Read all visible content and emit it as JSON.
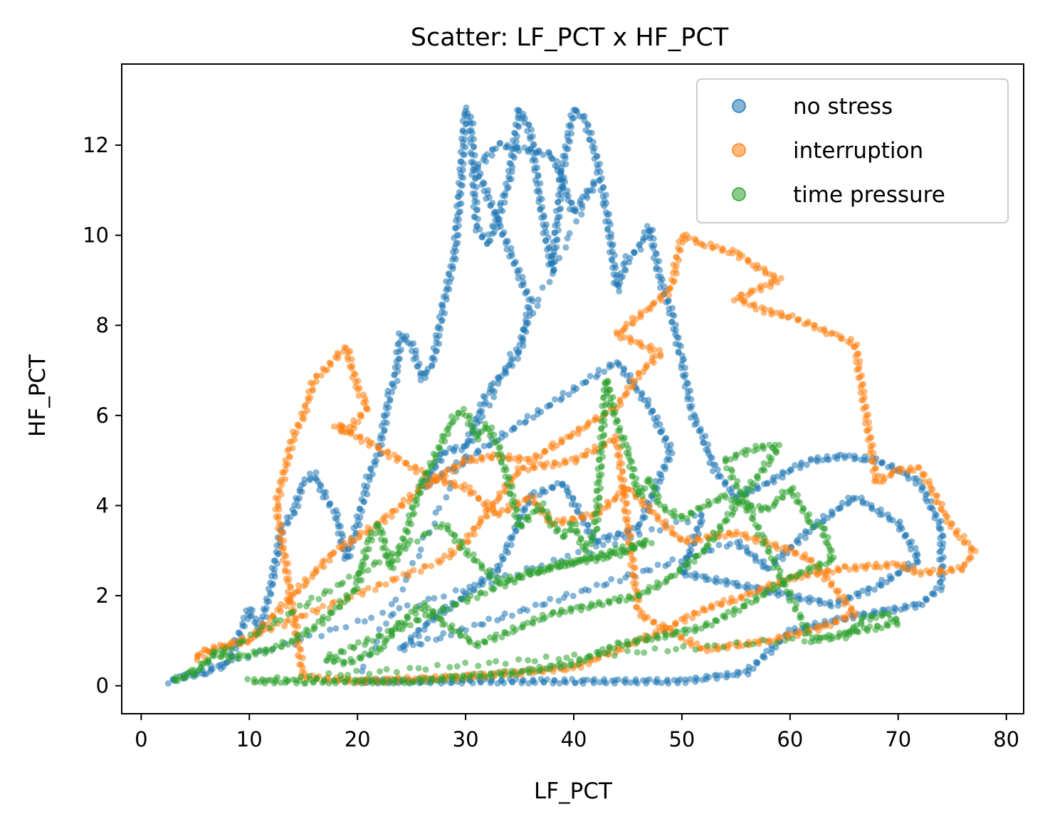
{
  "chart_data": {
    "type": "scatter",
    "title": "Scatter: LF_PCT x HF_PCT",
    "xlabel": "LF_PCT",
    "ylabel": "HF_PCT",
    "xlim": [
      -1.8,
      81.6
    ],
    "ylim": [
      -0.62,
      13.8
    ],
    "xticks": [
      0,
      10,
      20,
      30,
      40,
      50,
      60,
      70,
      80
    ],
    "yticks": [
      0,
      2,
      4,
      6,
      8,
      10,
      12
    ],
    "grid": false,
    "legend_position": "top-right",
    "series": [
      {
        "name": "no stress",
        "color": "#1f77b4",
        "points": [
          [
            2.5,
            0.1
          ],
          [
            4,
            0.2
          ],
          [
            6,
            0.3
          ],
          [
            8,
            0.5
          ],
          [
            10,
            1.7
          ],
          [
            11,
            1.2
          ],
          [
            12,
            2.2
          ],
          [
            13,
            3.5
          ],
          [
            14,
            3.8
          ],
          [
            15,
            4.5
          ],
          [
            16,
            4.7
          ],
          [
            17,
            4.2
          ],
          [
            18,
            3.8
          ],
          [
            19,
            2.8
          ],
          [
            20,
            3.6
          ],
          [
            21,
            4.6
          ],
          [
            22,
            5.2
          ],
          [
            23,
            6.5
          ],
          [
            23.5,
            6.8
          ],
          [
            24,
            7.8
          ],
          [
            25,
            7.6
          ],
          [
            26,
            6.8
          ],
          [
            27,
            7.2
          ],
          [
            28,
            8.5
          ],
          [
            29,
            9.6
          ],
          [
            29.5,
            11
          ],
          [
            30,
            12.8
          ],
          [
            30.5,
            12.5
          ],
          [
            31,
            10.2
          ],
          [
            32,
            9.8
          ],
          [
            33,
            10.4
          ],
          [
            34,
            11.2
          ],
          [
            35,
            12.8
          ],
          [
            36,
            12.3
          ],
          [
            37,
            10.6
          ],
          [
            38,
            9.2
          ],
          [
            39,
            11.5
          ],
          [
            40,
            12.8
          ],
          [
            41,
            12.6
          ],
          [
            42,
            11.8
          ],
          [
            43,
            10.6
          ],
          [
            44,
            8.8
          ],
          [
            45,
            9.5
          ],
          [
            46,
            9.7
          ],
          [
            47,
            10.2
          ],
          [
            48,
            9.0
          ],
          [
            49,
            8.3
          ],
          [
            50,
            7.2
          ],
          [
            51,
            6.0
          ],
          [
            52,
            5.5
          ],
          [
            53,
            4.8
          ],
          [
            55,
            4.2
          ],
          [
            58,
            4.5
          ],
          [
            60,
            4.8
          ],
          [
            62,
            5.0
          ],
          [
            65,
            5.1
          ],
          [
            68,
            5.0
          ],
          [
            70,
            4.8
          ],
          [
            72,
            4.5
          ],
          [
            74,
            3.5
          ],
          [
            74,
            2.2
          ],
          [
            72,
            1.8
          ],
          [
            65,
            1.5
          ],
          [
            60,
            1.2
          ],
          [
            56,
            0.3
          ],
          [
            50,
            0.1
          ],
          [
            40,
            0.1
          ],
          [
            30,
            0.1
          ],
          [
            20,
            0.1
          ],
          [
            42,
            11.2
          ],
          [
            40,
            10.5
          ],
          [
            38,
            11.8
          ],
          [
            33,
            12.0
          ],
          [
            31,
            11.5
          ],
          [
            36,
            8.5
          ],
          [
            35,
            7.4
          ],
          [
            32,
            6.5
          ],
          [
            30,
            5.3
          ],
          [
            28,
            5.2
          ],
          [
            26,
            4.4
          ],
          [
            44,
            7.2
          ],
          [
            47,
            6.2
          ],
          [
            49,
            5.2
          ],
          [
            46,
            3.5
          ],
          [
            42,
            3.2
          ],
          [
            39,
            4.5
          ],
          [
            36,
            4.2
          ],
          [
            33,
            2.6
          ],
          [
            30,
            2.0
          ],
          [
            27,
            1.5
          ],
          [
            24,
            0.8
          ],
          [
            55,
            3.2
          ],
          [
            58,
            2.6
          ],
          [
            62,
            3.5
          ],
          [
            66,
            4.2
          ],
          [
            70,
            3.6
          ],
          [
            72,
            2.8
          ],
          [
            68,
            2.2
          ],
          [
            64,
            1.8
          ],
          [
            50,
            2.5
          ],
          [
            52,
            3.8
          ]
        ]
      },
      {
        "name": "interruption",
        "color": "#ff7f0e",
        "points": [
          [
            5,
            0.6
          ],
          [
            6,
            0.8
          ],
          [
            8,
            0.9
          ],
          [
            10,
            1.0
          ],
          [
            12,
            1.5
          ],
          [
            14,
            2.0
          ],
          [
            16,
            2.5
          ],
          [
            18,
            3.0
          ],
          [
            20,
            3.3
          ],
          [
            22,
            3.6
          ],
          [
            24,
            4.0
          ],
          [
            26,
            4.4
          ],
          [
            28,
            4.7
          ],
          [
            30,
            5.0
          ],
          [
            33,
            5.1
          ],
          [
            36,
            5.0
          ],
          [
            38,
            5.3
          ],
          [
            40,
            5.6
          ],
          [
            42,
            5.9
          ],
          [
            44,
            6.2
          ],
          [
            46,
            6.9
          ],
          [
            48,
            7.4
          ],
          [
            44,
            7.8
          ],
          [
            47,
            8.4
          ],
          [
            49,
            8.8
          ],
          [
            50,
            10.0
          ],
          [
            52,
            9.8
          ],
          [
            55,
            9.6
          ],
          [
            57,
            9.3
          ],
          [
            59,
            9.0
          ],
          [
            55,
            8.6
          ],
          [
            58,
            8.3
          ],
          [
            60,
            8.2
          ],
          [
            62,
            8.0
          ],
          [
            64,
            7.8
          ],
          [
            66,
            7.6
          ],
          [
            68,
            4.5
          ],
          [
            70,
            4.8
          ],
          [
            72,
            4.8
          ],
          [
            73,
            4.4
          ],
          [
            75,
            3.5
          ],
          [
            77,
            3.0
          ],
          [
            76,
            2.6
          ],
          [
            72,
            2.5
          ],
          [
            70,
            2.7
          ],
          [
            65,
            2.6
          ],
          [
            60,
            2.4
          ],
          [
            56,
            2.0
          ],
          [
            52,
            1.7
          ],
          [
            48,
            1.2
          ],
          [
            45,
            0.9
          ],
          [
            42,
            0.6
          ],
          [
            40,
            0.4
          ],
          [
            35,
            0.3
          ],
          [
            30,
            0.2
          ],
          [
            25,
            0.15
          ],
          [
            20,
            0.1
          ],
          [
            15,
            0.2
          ],
          [
            12.5,
            4.0
          ],
          [
            13,
            4.5
          ],
          [
            14,
            5.5
          ],
          [
            15,
            6.0
          ],
          [
            16,
            6.8
          ],
          [
            17,
            7.0
          ],
          [
            18,
            7.3
          ],
          [
            19,
            7.5
          ],
          [
            20,
            6.6
          ],
          [
            21,
            6.2
          ],
          [
            19,
            5.6
          ],
          [
            18,
            5.8
          ],
          [
            27,
            4.6
          ],
          [
            30,
            4.4
          ],
          [
            33,
            3.8
          ],
          [
            36,
            4.2
          ],
          [
            38,
            3.6
          ],
          [
            42,
            3.8
          ],
          [
            45,
            4.4
          ],
          [
            50,
            3.2
          ],
          [
            55,
            3.4
          ],
          [
            60,
            3.0
          ],
          [
            62,
            2.8
          ],
          [
            66,
            1.6
          ],
          [
            63,
            1.3
          ],
          [
            58,
            1.0
          ],
          [
            52,
            0.8
          ],
          [
            46,
            1.6
          ],
          [
            44,
            5.5
          ],
          [
            40,
            5.0
          ],
          [
            35,
            4.8
          ],
          [
            30,
            3.2
          ],
          [
            28,
            2.8
          ]
        ]
      },
      {
        "name": "time pressure",
        "color": "#2ca02c",
        "points": [
          [
            3,
            0.1
          ],
          [
            5,
            0.3
          ],
          [
            6,
            0.5
          ],
          [
            7,
            0.8
          ],
          [
            8,
            0.6
          ],
          [
            10,
            0.7
          ],
          [
            12,
            0.8
          ],
          [
            14,
            1.0
          ],
          [
            16,
            1.3
          ],
          [
            18,
            1.7
          ],
          [
            20,
            2.2
          ],
          [
            21,
            3.2
          ],
          [
            22,
            3.6
          ],
          [
            23,
            2.6
          ],
          [
            24,
            3.0
          ],
          [
            25,
            3.8
          ],
          [
            26,
            4.5
          ],
          [
            27,
            5.0
          ],
          [
            28,
            5.5
          ],
          [
            29,
            6.0
          ],
          [
            30,
            6.1
          ],
          [
            31,
            5.5
          ],
          [
            32,
            5.8
          ],
          [
            33,
            5.3
          ],
          [
            34,
            4.5
          ],
          [
            35,
            3.5
          ],
          [
            36,
            3.8
          ],
          [
            37,
            4.0
          ],
          [
            38,
            3.6
          ],
          [
            39,
            3.3
          ],
          [
            40,
            3.6
          ],
          [
            41,
            3.0
          ],
          [
            42,
            3.4
          ],
          [
            43,
            6.8
          ],
          [
            44,
            5.8
          ],
          [
            45,
            5.2
          ],
          [
            46,
            4.2
          ],
          [
            47,
            4.6
          ],
          [
            48,
            4.0
          ],
          [
            50,
            3.7
          ],
          [
            52,
            4.0
          ],
          [
            54,
            4.2
          ],
          [
            56,
            4.0
          ],
          [
            58,
            3.9
          ],
          [
            60,
            4.4
          ],
          [
            62,
            3.6
          ],
          [
            63,
            3.5
          ],
          [
            64,
            2.8
          ],
          [
            60,
            2.4
          ],
          [
            56,
            1.8
          ],
          [
            52,
            1.3
          ],
          [
            48,
            1.1
          ],
          [
            44,
            0.9
          ],
          [
            40,
            0.5
          ],
          [
            35,
            0.3
          ],
          [
            30,
            0.2
          ],
          [
            25,
            0.1
          ],
          [
            20,
            0.1
          ],
          [
            15,
            0.1
          ],
          [
            10,
            0.1
          ],
          [
            65,
            1.1
          ],
          [
            67,
            1.5
          ],
          [
            69,
            1.6
          ],
          [
            70,
            1.4
          ],
          [
            66,
            1.2
          ],
          [
            62,
            1.0
          ],
          [
            54,
            5.0
          ],
          [
            57,
            5.3
          ],
          [
            59,
            5.3
          ],
          [
            52,
            3.0
          ],
          [
            49,
            2.4
          ],
          [
            46,
            2.0
          ],
          [
            42,
            1.8
          ],
          [
            38,
            1.6
          ],
          [
            34,
            1.2
          ],
          [
            31,
            0.9
          ],
          [
            28,
            1.4
          ],
          [
            26,
            1.8
          ],
          [
            24,
            1.4
          ],
          [
            22,
            0.8
          ],
          [
            19,
            0.5
          ],
          [
            17,
            0.6
          ],
          [
            36,
            2.5
          ],
          [
            39,
            2.7
          ],
          [
            44,
            2.9
          ],
          [
            47,
            3.2
          ],
          [
            33,
            2.3
          ],
          [
            30,
            3.0
          ],
          [
            28,
            3.6
          ]
        ]
      }
    ]
  }
}
